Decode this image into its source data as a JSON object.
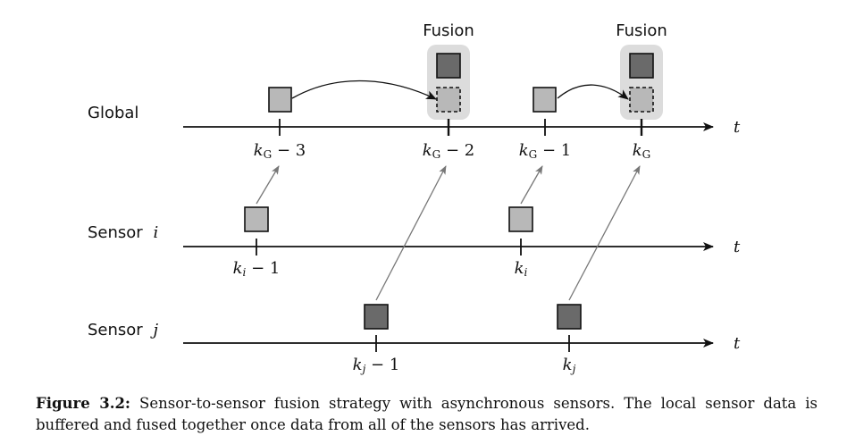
{
  "lanes": {
    "global": {
      "label": "Global",
      "axis": "t",
      "ticks": [
        {
          "k": "k",
          "sub": "G",
          "tail": " − 3"
        },
        {
          "k": "k",
          "sub": "G",
          "tail": " − 2"
        },
        {
          "k": "k",
          "sub": "G",
          "tail": " − 1"
        },
        {
          "k": "k",
          "sub": "G",
          "tail": ""
        }
      ]
    },
    "sensor_i": {
      "label": "Sensor",
      "var": "i",
      "axis": "t",
      "ticks": [
        {
          "k": "k",
          "sub": "i",
          "tail": " − 1"
        },
        {
          "k": "k",
          "sub": "i",
          "tail": ""
        }
      ]
    },
    "sensor_j": {
      "label": "Sensor",
      "var": "j",
      "axis": "t",
      "ticks": [
        {
          "k": "k",
          "sub": "j",
          "tail": " − 1"
        },
        {
          "k": "k",
          "sub": "j",
          "tail": ""
        }
      ]
    }
  },
  "fusion": [
    "Fusion",
    "Fusion"
  ],
  "colors": {
    "light_box": "#b8b8b8",
    "dark_box": "#6a6a6a",
    "fusion_bg": "#dcdcdc",
    "arrow_gray": "#777777"
  },
  "caption": {
    "label": "Figure 3.2:",
    "text": "Sensor-to-sensor fusion strategy with asynchronous sensors. The local sensor data is buffered and fused together once data from all of the sensors has arrived."
  }
}
